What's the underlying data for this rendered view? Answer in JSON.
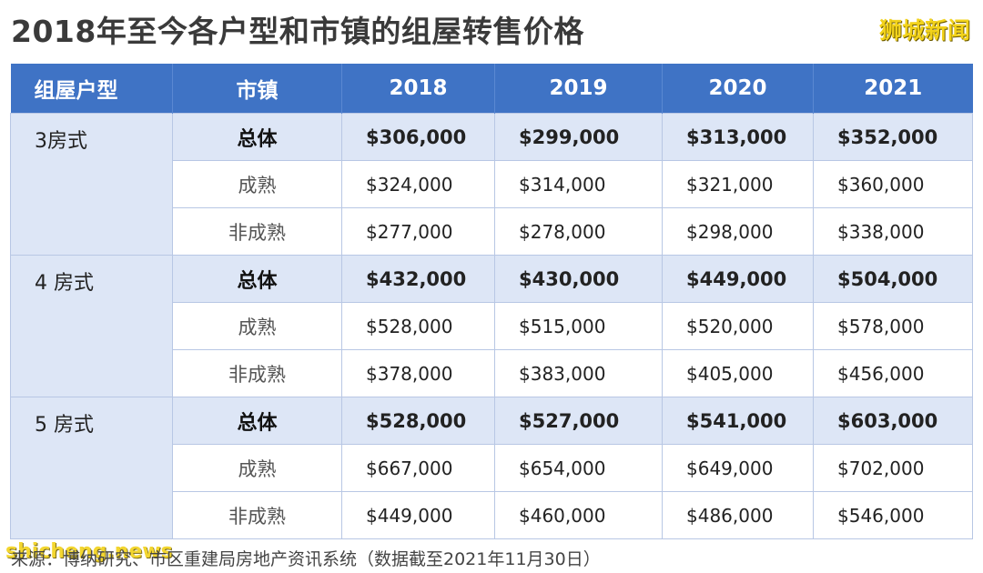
{
  "title": "2018年至今各户型和市镇的组屋转售价格",
  "brand": "狮城新闻",
  "source": "来源：博纳研究、市区重建局房地产资讯系统（数据截至2021年11月30日）",
  "watermark": "shicheng.news",
  "chart_data": {
    "type": "table",
    "headers": [
      "组屋户型",
      "市镇",
      "2018",
      "2019",
      "2020",
      "2021"
    ],
    "groups": [
      {
        "type": "3房式",
        "rows": [
          {
            "town": "总体",
            "values": [
              "$306,000",
              "$299,000",
              "$313,000",
              "$352,000"
            ]
          },
          {
            "town": "成熟",
            "values": [
              "$324,000",
              "$314,000",
              "$321,000",
              "$360,000"
            ]
          },
          {
            "town": "非成熟",
            "values": [
              "$277,000",
              "$278,000",
              "$298,000",
              "$338,000"
            ]
          }
        ]
      },
      {
        "type": "4 房式",
        "rows": [
          {
            "town": "总体",
            "values": [
              "$432,000",
              "$430,000",
              "$449,000",
              "$504,000"
            ]
          },
          {
            "town": "成熟",
            "values": [
              "$528,000",
              "$515,000",
              "$520,000",
              "$578,000"
            ]
          },
          {
            "town": "非成熟",
            "values": [
              "$378,000",
              "$383,000",
              "$405,000",
              "$456,000"
            ]
          }
        ]
      },
      {
        "type": "5 房式",
        "rows": [
          {
            "town": "总体",
            "values": [
              "$528,000",
              "$527,000",
              "$541,000",
              "$603,000"
            ]
          },
          {
            "town": "成熟",
            "values": [
              "$667,000",
              "$654,000",
              "$649,000",
              "$702,000"
            ]
          },
          {
            "town": "非成熟",
            "values": [
              "$449,000",
              "$460,000",
              "$486,000",
              "$546,000"
            ]
          }
        ]
      }
    ]
  }
}
